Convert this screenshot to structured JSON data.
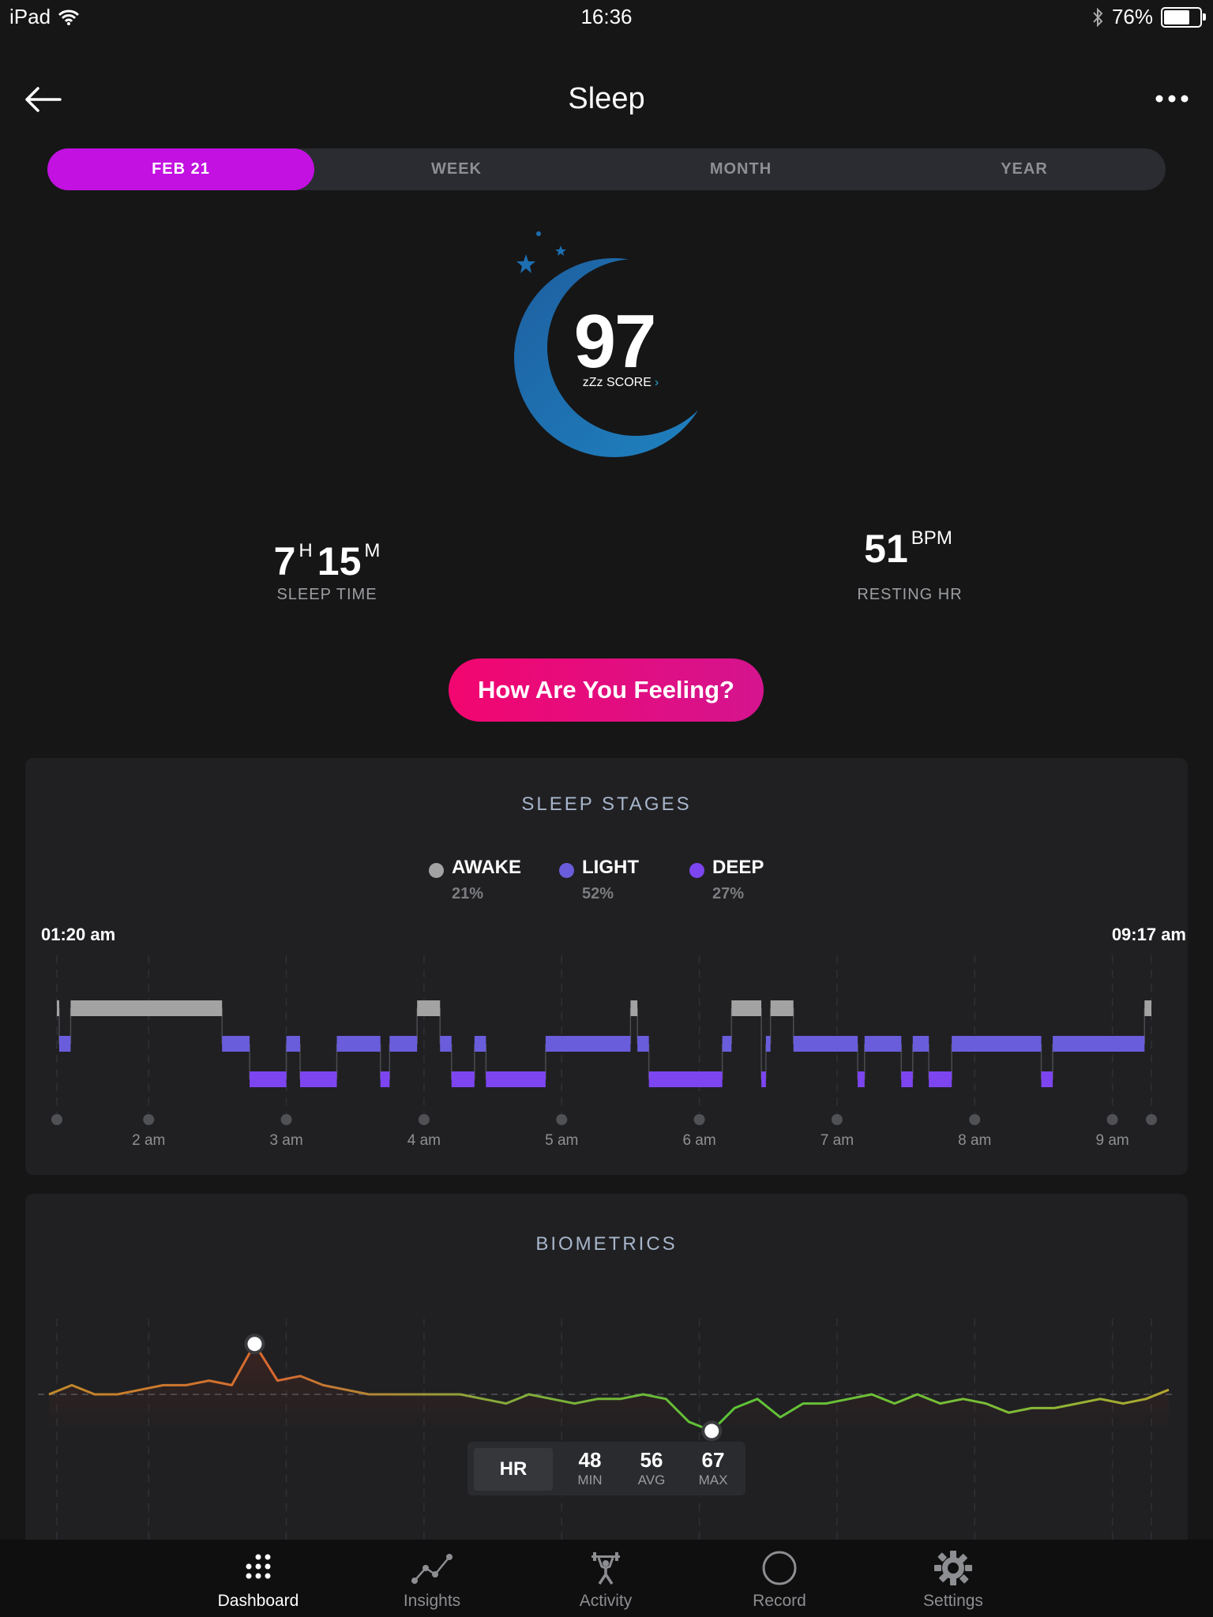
{
  "status_bar": {
    "device": "iPad",
    "time": "16:36",
    "battery": "76%",
    "battery_level": 0.76,
    "icons": [
      "wifi-icon",
      "bluetooth-icon",
      "battery-icon"
    ]
  },
  "header": {
    "title": "Sleep",
    "back_icon": "arrow-left-icon",
    "more_icon": "more-horizontal-icon"
  },
  "tabs": [
    {
      "label": "FEB 21",
      "active": true
    },
    {
      "label": "WEEK",
      "active": false
    },
    {
      "label": "MONTH",
      "active": false
    },
    {
      "label": "YEAR",
      "active": false
    }
  ],
  "score": {
    "value": "97",
    "label": "zZz SCORE",
    "chevron": "›",
    "icon": "crescent-moon-icon"
  },
  "sleep_time": {
    "hours": "7",
    "h_unit": "H",
    "minutes": "15",
    "m_unit": "M",
    "label": "SLEEP TIME"
  },
  "resting_hr": {
    "value": "51",
    "unit": "BPM",
    "label": "RESTING HR"
  },
  "feeling_button": "How Are You Feeling?",
  "sleep_stages": {
    "title": "SLEEP STAGES",
    "legend": [
      {
        "name": "AWAKE",
        "pct": "21%",
        "color": "#a3a3a3"
      },
      {
        "name": "LIGHT",
        "pct": "52%",
        "color": "#6a5ddc"
      },
      {
        "name": "DEEP",
        "pct": "27%",
        "color": "#7d45f0"
      }
    ],
    "start_time": "01:20 am",
    "end_time": "09:17 am",
    "ticks": [
      "2 am",
      "3 am",
      "4 am",
      "5 am",
      "6 am",
      "7 am",
      "8 am",
      "9 am"
    ]
  },
  "biometrics": {
    "title": "BIOMETRICS",
    "metric": "HR",
    "min": "48",
    "min_label": "MIN",
    "avg": "56",
    "avg_label": "AVG",
    "max": "67",
    "max_label": "MAX"
  },
  "tab_bar": [
    {
      "label": "Dashboard",
      "icon": "dashboard-grid-icon",
      "active": true
    },
    {
      "label": "Insights",
      "icon": "insights-trend-icon",
      "active": false
    },
    {
      "label": "Activity",
      "icon": "activity-weightlifter-icon",
      "active": false
    },
    {
      "label": "Record",
      "icon": "record-circle-icon",
      "active": false
    },
    {
      "label": "Settings",
      "icon": "settings-gear-icon",
      "active": false
    }
  ],
  "chart_data": [
    {
      "type": "area",
      "title": "SLEEP STAGES",
      "categories": [
        "AWAKE",
        "LIGHT",
        "DEEP"
      ],
      "values": [
        21,
        52,
        27
      ],
      "x_range": [
        "01:20 am",
        "09:17 am"
      ],
      "segments": [
        {
          "start": "01:20",
          "end": "01:21",
          "stage": "AWAKE"
        },
        {
          "start": "01:21",
          "end": "01:26",
          "stage": "LIGHT"
        },
        {
          "start": "01:26",
          "end": "02:32",
          "stage": "AWAKE"
        },
        {
          "start": "02:32",
          "end": "02:44",
          "stage": "LIGHT"
        },
        {
          "start": "02:44",
          "end": "03:00",
          "stage": "DEEP"
        },
        {
          "start": "03:00",
          "end": "03:06",
          "stage": "LIGHT"
        },
        {
          "start": "03:06",
          "end": "03:22",
          "stage": "DEEP"
        },
        {
          "start": "03:22",
          "end": "03:41",
          "stage": "LIGHT"
        },
        {
          "start": "03:41",
          "end": "03:45",
          "stage": "DEEP"
        },
        {
          "start": "03:45",
          "end": "03:57",
          "stage": "LIGHT"
        },
        {
          "start": "03:57",
          "end": "04:07",
          "stage": "AWAKE"
        },
        {
          "start": "04:07",
          "end": "04:12",
          "stage": "LIGHT"
        },
        {
          "start": "04:12",
          "end": "04:22",
          "stage": "DEEP"
        },
        {
          "start": "04:22",
          "end": "04:27",
          "stage": "LIGHT"
        },
        {
          "start": "04:27",
          "end": "04:53",
          "stage": "DEEP"
        },
        {
          "start": "04:53",
          "end": "05:30",
          "stage": "LIGHT"
        },
        {
          "start": "05:30",
          "end": "05:33",
          "stage": "AWAKE"
        },
        {
          "start": "05:33",
          "end": "05:38",
          "stage": "LIGHT"
        },
        {
          "start": "05:38",
          "end": "06:10",
          "stage": "DEEP"
        },
        {
          "start": "06:10",
          "end": "06:14",
          "stage": "LIGHT"
        },
        {
          "start": "06:14",
          "end": "06:27",
          "stage": "AWAKE"
        },
        {
          "start": "06:27",
          "end": "06:29",
          "stage": "DEEP"
        },
        {
          "start": "06:29",
          "end": "06:31",
          "stage": "LIGHT"
        },
        {
          "start": "06:31",
          "end": "06:41",
          "stage": "AWAKE"
        },
        {
          "start": "06:41",
          "end": "07:09",
          "stage": "LIGHT"
        },
        {
          "start": "07:09",
          "end": "07:12",
          "stage": "DEEP"
        },
        {
          "start": "07:12",
          "end": "07:28",
          "stage": "LIGHT"
        },
        {
          "start": "07:28",
          "end": "07:33",
          "stage": "DEEP"
        },
        {
          "start": "07:33",
          "end": "07:40",
          "stage": "LIGHT"
        },
        {
          "start": "07:40",
          "end": "07:50",
          "stage": "DEEP"
        },
        {
          "start": "07:50",
          "end": "08:29",
          "stage": "LIGHT"
        },
        {
          "start": "08:29",
          "end": "08:34",
          "stage": "DEEP"
        },
        {
          "start": "08:34",
          "end": "09:14",
          "stage": "LIGHT"
        },
        {
          "start": "09:14",
          "end": "09:17",
          "stage": "AWAKE"
        }
      ]
    },
    {
      "type": "line",
      "title": "BIOMETRICS",
      "series": [
        {
          "name": "HR",
          "values": [
            56,
            58,
            56,
            56,
            57,
            58,
            58,
            59,
            58,
            67,
            59,
            60,
            58,
            57,
            56,
            56,
            56,
            56,
            56,
            55,
            54,
            56,
            55,
            54,
            55,
            55,
            56,
            55,
            50,
            48,
            53,
            55,
            51,
            54,
            54,
            55,
            56,
            54,
            56,
            54,
            55,
            54,
            52,
            53,
            53,
            54,
            55,
            54,
            55,
            57
          ]
        }
      ],
      "y_summary": {
        "min": 48,
        "avg": 56,
        "max": 67
      }
    }
  ]
}
